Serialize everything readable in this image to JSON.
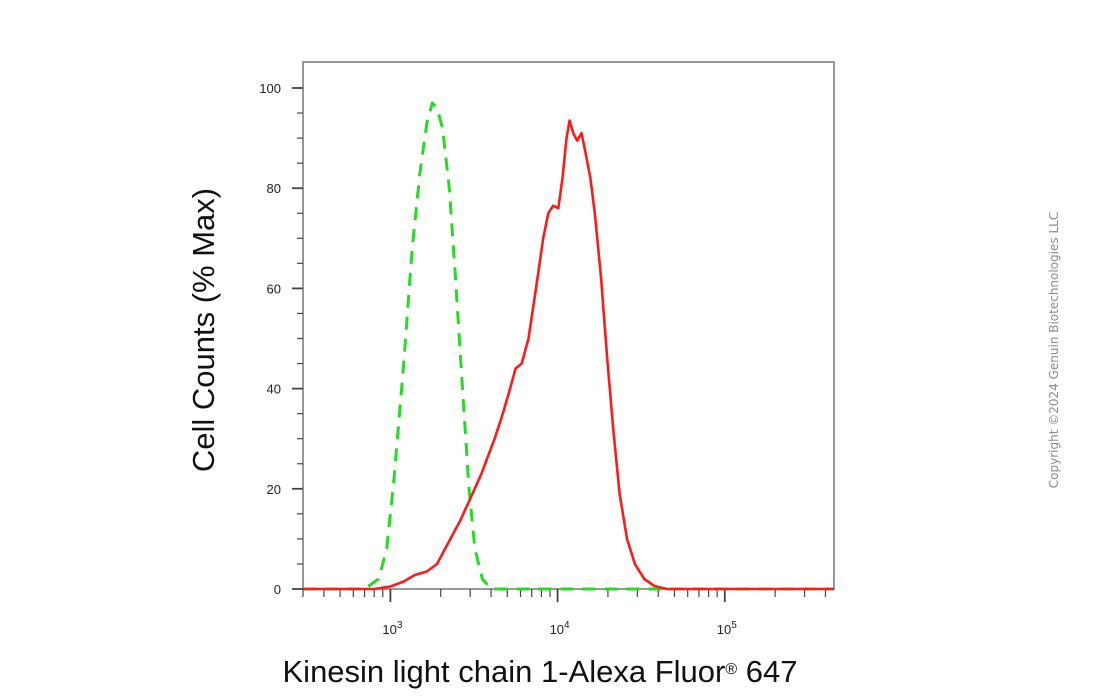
{
  "chart_data": {
    "type": "line",
    "xlabel": "Kinesin light chain 1-Alexa Fluor",
    "xlabel_mark": "®",
    "xlabel_suffix": " 647",
    "ylabel": "Cell Counts (% Max)",
    "xscale": "log",
    "xlim": [
      300,
      450000
    ],
    "ylim": [
      0,
      100
    ],
    "x_ticks": [
      {
        "base": "10",
        "exp": "3",
        "value": 1000
      },
      {
        "base": "10",
        "exp": "4",
        "value": 10000
      },
      {
        "base": "10",
        "exp": "5",
        "value": 100000
      }
    ],
    "y_ticks": [
      0,
      20,
      40,
      60,
      80,
      100
    ],
    "grid": false,
    "legend": "none",
    "series": [
      {
        "color": "#22dd22",
        "dash": "dashed",
        "points": [
          [
            300,
            0
          ],
          [
            700,
            0
          ],
          [
            850,
            2
          ],
          [
            950,
            8
          ],
          [
            1050,
            22
          ],
          [
            1200,
            45
          ],
          [
            1350,
            68
          ],
          [
            1500,
            83
          ],
          [
            1650,
            93
          ],
          [
            1780,
            97
          ],
          [
            1900,
            96
          ],
          [
            2050,
            92
          ],
          [
            2250,
            80
          ],
          [
            2450,
            62
          ],
          [
            2700,
            40
          ],
          [
            2950,
            20
          ],
          [
            3200,
            8
          ],
          [
            3550,
            2
          ],
          [
            4000,
            0
          ],
          [
            450000,
            0
          ]
        ]
      },
      {
        "color": "#ff1a1a",
        "dash": "solid",
        "points": [
          [
            300,
            0
          ],
          [
            800,
            0
          ],
          [
            1000,
            0.5
          ],
          [
            1200,
            1.5
          ],
          [
            1400,
            2.8
          ],
          [
            1650,
            3.5
          ],
          [
            1900,
            5
          ],
          [
            2200,
            9
          ],
          [
            2600,
            13.5
          ],
          [
            3000,
            18
          ],
          [
            3500,
            23
          ],
          [
            4200,
            30
          ],
          [
            4700,
            35
          ],
          [
            5200,
            40
          ],
          [
            5600,
            44
          ],
          [
            6100,
            45
          ],
          [
            6700,
            50
          ],
          [
            7500,
            61
          ],
          [
            8200,
            70
          ],
          [
            8800,
            75
          ],
          [
            9400,
            76.5
          ],
          [
            10100,
            76
          ],
          [
            10700,
            82
          ],
          [
            11300,
            90
          ],
          [
            11800,
            93.5
          ],
          [
            12400,
            91
          ],
          [
            13100,
            89.5
          ],
          [
            13900,
            91
          ],
          [
            14700,
            87
          ],
          [
            15700,
            82
          ],
          [
            16700,
            75
          ],
          [
            18200,
            62
          ],
          [
            19800,
            46
          ],
          [
            21500,
            32
          ],
          [
            23500,
            19
          ],
          [
            26000,
            10
          ],
          [
            29000,
            5
          ],
          [
            33000,
            2
          ],
          [
            38000,
            0.6
          ],
          [
            45000,
            0
          ],
          [
            450000,
            0
          ]
        ]
      }
    ]
  },
  "watermark": "Copyright ©2024 Genuin Biotechnologies LLC"
}
